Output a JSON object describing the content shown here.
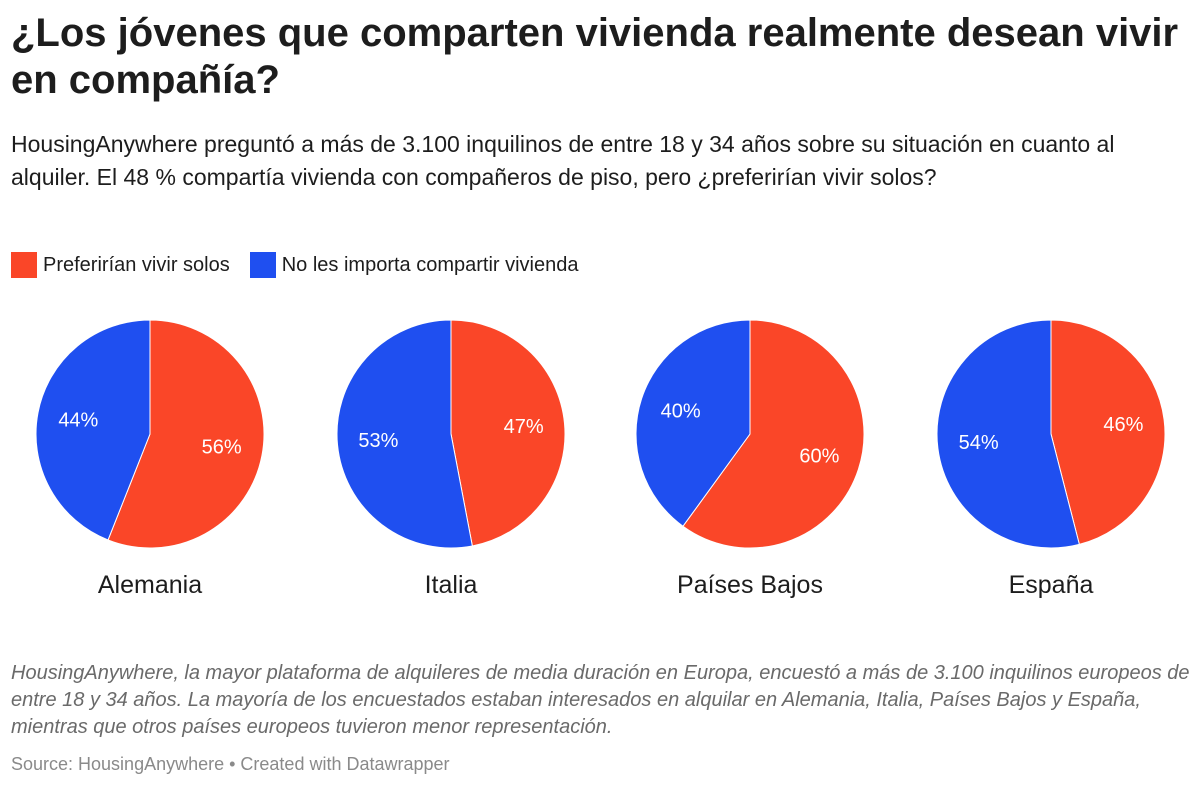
{
  "header": {
    "title": "¿Los jóvenes que comparten vivienda realmente desean vivir en compañía?",
    "subtitle": "HousingAnywhere preguntó a más de 3.100 inquilinos de entre 18 y 34 años sobre su situación en cuanto al alquiler. El 48 % compartía vivienda con compañeros de piso, pero ¿preferirían vivir solos?"
  },
  "colors": {
    "solos": "#fa4628",
    "compartir": "#1f4ff0"
  },
  "legend": {
    "solos_label": "Preferirían vivir solos",
    "compartir_label": "No les importa compartir vivienda"
  },
  "chart_data": [
    {
      "type": "pie",
      "title": "Alemania",
      "series": [
        {
          "name": "Preferirían vivir solos",
          "value": 56,
          "label": "56%"
        },
        {
          "name": "No les importa compartir vivienda",
          "value": 44,
          "label": "44%"
        }
      ]
    },
    {
      "type": "pie",
      "title": "Italia",
      "series": [
        {
          "name": "Preferirían vivir solos",
          "value": 47,
          "label": "47%"
        },
        {
          "name": "No les importa compartir vivienda",
          "value": 53,
          "label": "53%"
        }
      ]
    },
    {
      "type": "pie",
      "title": "Países Bajos",
      "series": [
        {
          "name": "Preferirían vivir solos",
          "value": 60,
          "label": "60%"
        },
        {
          "name": "No les importa compartir vivienda",
          "value": 40,
          "label": "40%"
        }
      ]
    },
    {
      "type": "pie",
      "title": "España",
      "series": [
        {
          "name": "Preferirían vivir solos",
          "value": 46,
          "label": "46%"
        },
        {
          "name": "No les importa compartir vivienda",
          "value": 54,
          "label": "54%"
        }
      ]
    }
  ],
  "footer": {
    "notes": "HousingAnywhere, la mayor plataforma de alquileres de media duración en Europa, encuestó a más de 3.100 inquilinos europeos de entre 18 y 34 años. La mayoría de los encuestados estaban interesados en alquilar en Alemania, Italia, Países Bajos y España, mientras que otros países europeos tuvieron menor representación.",
    "source": "Source: HousingAnywhere • Created with Datawrapper"
  }
}
